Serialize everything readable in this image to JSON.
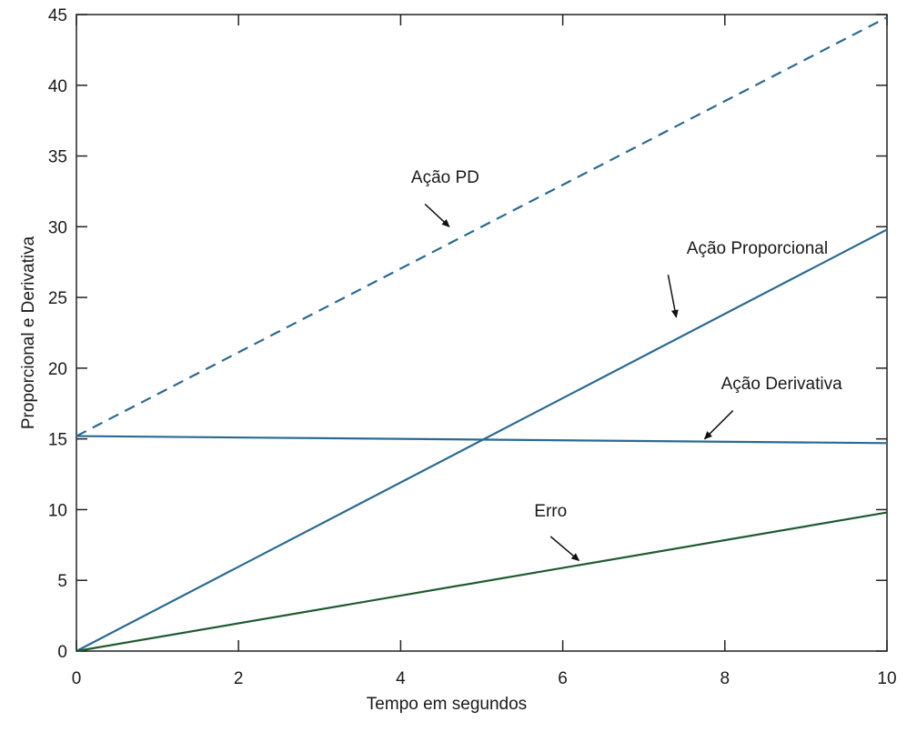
{
  "chart_data": {
    "type": "line",
    "title": "",
    "xlabel": "Tempo em segundos",
    "ylabel": "Proporcional e Derivativa",
    "xlim": [
      0,
      10
    ],
    "ylim": [
      0,
      45
    ],
    "x_ticks": [
      0,
      2,
      4,
      6,
      8,
      10
    ],
    "y_ticks": [
      0,
      5,
      10,
      15,
      20,
      25,
      30,
      35,
      40,
      45
    ],
    "grid": false,
    "series": [
      {
        "name": "Ação PD",
        "x": [
          0,
          10
        ],
        "y": [
          15.2,
          44.8
        ],
        "color": "#2a6a92",
        "style": "dashed"
      },
      {
        "name": "Ação Proporcional",
        "x": [
          0,
          10
        ],
        "y": [
          0,
          29.8
        ],
        "color": "#2a6a92",
        "style": "solid"
      },
      {
        "name": "Ação Derivativa",
        "x": [
          0,
          10
        ],
        "y": [
          15.2,
          14.7
        ],
        "color": "#2a6a92",
        "style": "solid"
      },
      {
        "name": "Erro",
        "x": [
          0,
          10
        ],
        "y": [
          0,
          9.8
        ],
        "color": "#1f5a30",
        "style": "solid"
      }
    ],
    "annotations": [
      {
        "text": "Ação PD",
        "text_at": [
          4.55,
          33.1
        ],
        "arrow_from": [
          4.3,
          31.6
        ],
        "arrow_to": [
          4.6,
          30.0
        ]
      },
      {
        "text": "Ação Proporcional",
        "text_at": [
          8.4,
          28.1
        ],
        "arrow_from": [
          7.3,
          26.6
        ],
        "arrow_to": [
          7.4,
          23.6
        ]
      },
      {
        "text": "Ação Derivativa",
        "text_at": [
          8.7,
          18.5
        ],
        "arrow_from": [
          8.1,
          17.0
        ],
        "arrow_to": [
          7.75,
          15.0
        ]
      },
      {
        "text": "Erro",
        "text_at": [
          5.85,
          9.5
        ],
        "arrow_from": [
          5.85,
          8.1
        ],
        "arrow_to": [
          6.2,
          6.4
        ]
      }
    ]
  }
}
